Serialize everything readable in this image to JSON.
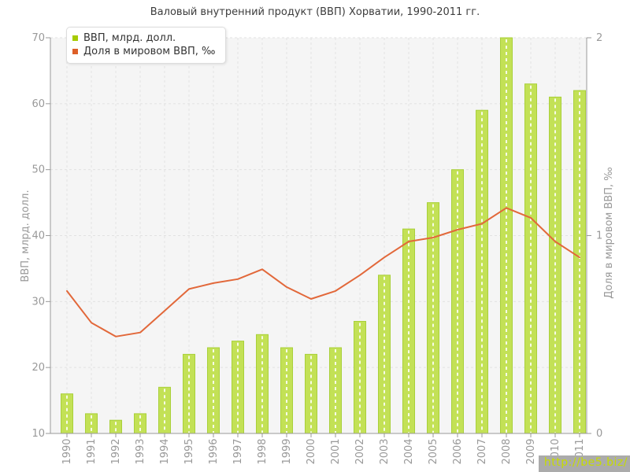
{
  "chart_data": {
    "type": "bar+line",
    "title": "Валовый внутренний продукт (ВВП) Хорватии, 1990-2011 гг.",
    "categories": [
      "1990",
      "1991",
      "1992",
      "1993",
      "1994",
      "1995",
      "1996",
      "1997",
      "1998",
      "1999",
      "2000",
      "2001",
      "2002",
      "2003",
      "2004",
      "2005",
      "2006",
      "2007",
      "2008",
      "2009",
      "2010",
      "2011"
    ],
    "series": [
      {
        "name": "ВВП, млрд. долл.",
        "type": "bar",
        "axis": "left",
        "color": "#c3e156",
        "border_color": "#a9d03a",
        "marker_color": "#a6cb00",
        "values": [
          16,
          13,
          12,
          13,
          17,
          22,
          23,
          24,
          25,
          23,
          22,
          23,
          27,
          34,
          41,
          45,
          50,
          59,
          70,
          63,
          61,
          62
        ]
      },
      {
        "name": "Доля в мировом ВВП, ‰",
        "type": "line",
        "axis": "right",
        "color": "#e2683a",
        "marker_color": "#dd5f28",
        "values": [
          0.72,
          0.56,
          0.49,
          0.51,
          0.62,
          0.73,
          0.76,
          0.78,
          0.83,
          0.74,
          0.68,
          0.72,
          0.8,
          0.89,
          0.97,
          0.99,
          1.03,
          1.06,
          1.14,
          1.09,
          0.97,
          0.89
        ]
      }
    ],
    "ylabel_left": "ВВП, млрд. долл.",
    "ylabel_right": "Доля в мировом ВВП, ‰",
    "ylim_left": [
      10,
      70
    ],
    "ylim_right": [
      0,
      2
    ],
    "yticks_left": [
      10,
      20,
      30,
      40,
      50,
      60,
      70
    ],
    "yticks_right": [
      0,
      1,
      2
    ],
    "grid": true,
    "legend_position": "top-left",
    "colors": {
      "plot_bg": "#f5f5f5",
      "grid": "#e2e2e2",
      "grid_on_bar": "rgba(255,255,255,0.85)",
      "axis": "#999999",
      "tick_text": "#999999",
      "title_text": "#3c3c3c",
      "legend_text": "#333333"
    }
  },
  "watermark": {
    "text": "http://be5.biz/",
    "color": "#c6dc00",
    "background": "#ababab"
  }
}
